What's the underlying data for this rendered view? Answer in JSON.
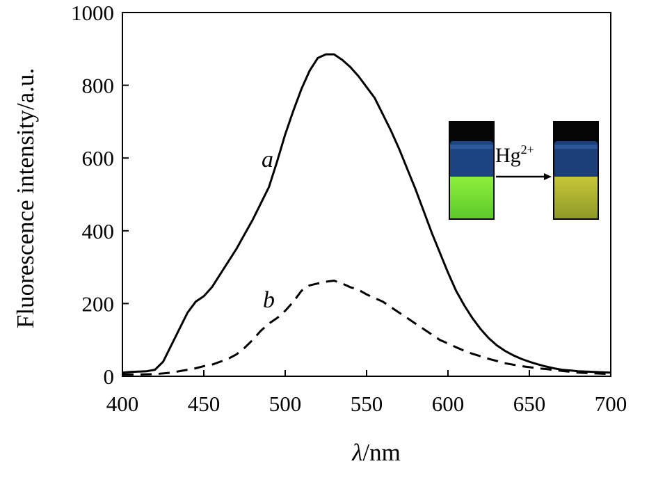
{
  "chart_data": {
    "type": "line",
    "xlabel_symbol": "λ",
    "xlabel_unit": "/nm",
    "ylabel": "Fluorescence intensity/a.u.",
    "xlim": [
      400,
      700
    ],
    "ylim": [
      0,
      1000
    ],
    "x_ticks": [
      400,
      450,
      500,
      550,
      600,
      650,
      700
    ],
    "y_ticks": [
      0,
      200,
      400,
      600,
      800,
      1000
    ],
    "x_tick_labels": [
      "400",
      "450",
      "500",
      "550",
      "600",
      "650",
      "700"
    ],
    "y_tick_labels": [
      "0",
      "200",
      "400",
      "600",
      "800",
      "1000"
    ],
    "grid": false,
    "series": [
      {
        "name": "a",
        "style": "solid",
        "x": [
          400,
          405,
          410,
          415,
          420,
          425,
          430,
          435,
          440,
          445,
          450,
          455,
          460,
          465,
          470,
          475,
          480,
          485,
          490,
          495,
          500,
          505,
          510,
          515,
          520,
          525,
          530,
          535,
          540,
          545,
          550,
          555,
          560,
          565,
          570,
          575,
          580,
          585,
          590,
          595,
          600,
          605,
          610,
          615,
          620,
          625,
          630,
          635,
          640,
          645,
          650,
          655,
          660,
          665,
          670,
          675,
          680,
          685,
          690,
          695,
          700
        ],
        "y": [
          10,
          12,
          13,
          14,
          18,
          40,
          85,
          130,
          175,
          205,
          220,
          245,
          280,
          315,
          350,
          390,
          430,
          475,
          520,
          590,
          665,
          730,
          790,
          840,
          875,
          885,
          885,
          870,
          850,
          825,
          795,
          765,
          720,
          675,
          625,
          570,
          515,
          455,
          395,
          340,
          285,
          235,
          195,
          160,
          130,
          105,
          85,
          70,
          58,
          48,
          40,
          33,
          27,
          22,
          18,
          16,
          14,
          13,
          12,
          11,
          10
        ]
      },
      {
        "name": "b",
        "style": "dashed",
        "x": [
          400,
          410,
          420,
          430,
          440,
          445,
          450,
          455,
          460,
          465,
          470,
          475,
          480,
          485,
          490,
          495,
          500,
          505,
          510,
          515,
          520,
          525,
          530,
          535,
          540,
          545,
          550,
          555,
          560,
          565,
          570,
          575,
          580,
          585,
          590,
          595,
          600,
          605,
          610,
          615,
          620,
          625,
          630,
          635,
          640,
          645,
          650,
          655,
          660,
          670,
          680,
          690,
          700
        ],
        "y": [
          5,
          5,
          6,
          10,
          18,
          22,
          28,
          32,
          40,
          48,
          60,
          78,
          100,
          125,
          145,
          160,
          180,
          205,
          235,
          250,
          255,
          260,
          263,
          255,
          245,
          238,
          225,
          215,
          205,
          190,
          175,
          160,
          145,
          130,
          115,
          100,
          90,
          80,
          70,
          62,
          55,
          48,
          42,
          36,
          32,
          28,
          25,
          22,
          20,
          15,
          10,
          8,
          6
        ]
      }
    ],
    "series_labels": [
      "a",
      "b"
    ]
  },
  "inset": {
    "reagent_base": "Hg",
    "reagent_sup": "2+",
    "colors": {
      "vial_top_bg": "#050505",
      "vial_glass": "#1b3f7a",
      "left_solution": "#74e234",
      "right_solution": "#a7b22e"
    }
  },
  "colors": {
    "axis": "#000000",
    "line": "#000000"
  }
}
